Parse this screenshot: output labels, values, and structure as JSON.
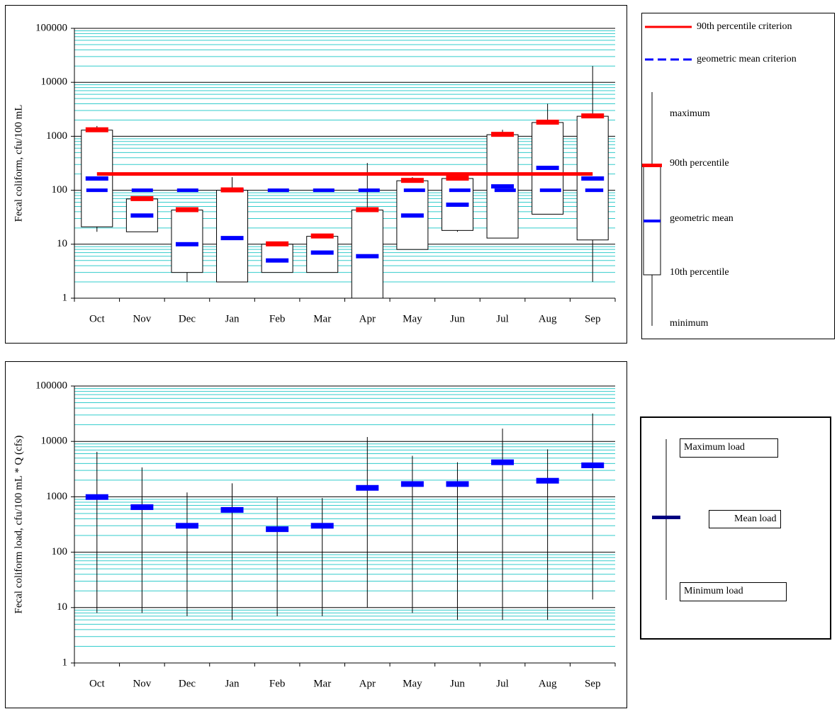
{
  "chart_data": [
    {
      "type": "boxplot",
      "y_label": "Fecal coliform, cfu/100 mL",
      "categories": [
        "Oct",
        "Nov",
        "Dec",
        "Jan",
        "Feb",
        "Mar",
        "Apr",
        "May",
        "Jun",
        "Jul",
        "Aug",
        "Sep"
      ],
      "log_scale": true,
      "grid": true,
      "minor_grid": true,
      "ylim": [
        1,
        100000
      ],
      "yticks": [
        1,
        10,
        100,
        1000,
        10000,
        100000
      ],
      "minimum": [
        17,
        17,
        2,
        2,
        3,
        3,
        1,
        8,
        17,
        13,
        36,
        2
      ],
      "p10": [
        21,
        17,
        3,
        2,
        3,
        3,
        1,
        8,
        18,
        13,
        36,
        12
      ],
      "geometric_mean": [
        165,
        34,
        10,
        13,
        5,
        7,
        6,
        34,
        54,
        118,
        260,
        165
      ],
      "p90": [
        1300,
        69,
        43,
        100,
        10,
        14,
        43,
        150,
        165,
        1070,
        1800,
        2350
      ],
      "maximum": [
        1550,
        69,
        43,
        175,
        10,
        14,
        320,
        175,
        200,
        1320,
        4000,
        20000
      ],
      "p90_color": "#ff0000",
      "mean_color": "#0000ff",
      "criteria": [
        {
          "name": "90th percentile criterion",
          "value": 200,
          "color": "#ff0000",
          "dashed": false
        },
        {
          "name": "geometric mean criterion",
          "value": 100,
          "color": "#0000ff",
          "dashed": true
        }
      ],
      "legend_labels": [
        "maximum",
        "90th percentile",
        "geometric mean",
        "10th percentile",
        "minimum"
      ]
    },
    {
      "type": "range",
      "y_label": "Fecal coliform load, cfu/100 mL * Q (cfs)",
      "categories": [
        "Oct",
        "Nov",
        "Dec",
        "Jan",
        "Feb",
        "Mar",
        "Apr",
        "May",
        "Jun",
        "Jul",
        "Aug",
        "Sep"
      ],
      "log_scale": true,
      "grid": true,
      "minor_grid": true,
      "ylim": [
        1,
        100000
      ],
      "yticks": [
        1,
        10,
        100,
        1000,
        10000,
        100000
      ],
      "minimum": [
        8,
        8,
        7,
        6,
        7,
        7,
        10,
        8,
        6,
        6,
        6,
        14
      ],
      "mean": [
        990,
        650,
        300,
        580,
        260,
        300,
        1450,
        1700,
        1700,
        4200,
        1950,
        3700
      ],
      "maximum": [
        6500,
        3400,
        1200,
        1750,
        980,
        950,
        12000,
        5500,
        4200,
        17000,
        7200,
        32000
      ],
      "mean_color": "#0000ff",
      "legend_labels": [
        "Maximum load",
        "Mean load",
        "Minimum load"
      ]
    }
  ]
}
